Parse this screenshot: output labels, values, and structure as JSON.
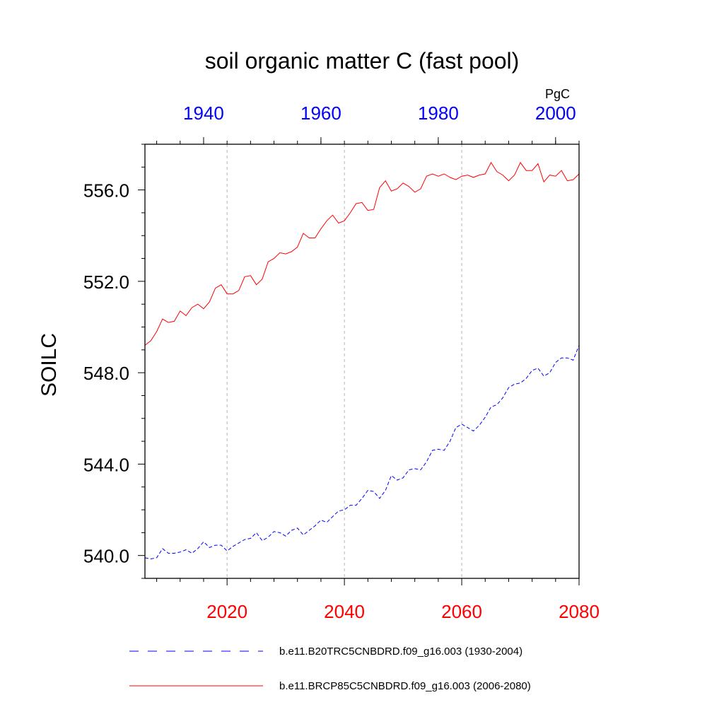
{
  "chart_data": {
    "type": "line",
    "title": "soil organic matter C (fast pool)",
    "units": "PgC",
    "ylabel": "SOILC",
    "ylim": [
      539.0,
      558.0
    ],
    "yticks": [
      540.0,
      544.0,
      548.0,
      552.0,
      556.0
    ],
    "ytick_labels": [
      "540.0",
      "544.0",
      "548.0",
      "552.0",
      "556.0"
    ],
    "grid": "vertical dashed lines at bottom-axis major ticks",
    "bottom_axis": {
      "range": [
        2006,
        2080
      ],
      "ticks": [
        2020,
        2040,
        2060,
        2080
      ],
      "tick_labels": [
        "2020",
        "2040",
        "2060",
        "2080"
      ],
      "color": "#ff0000"
    },
    "top_axis": {
      "range": [
        1930,
        2004
      ],
      "ticks": [
        1940,
        1960,
        1980,
        2000
      ],
      "tick_labels": [
        "1940",
        "1960",
        "1980",
        "2000"
      ],
      "color": "#0000ff"
    },
    "series": [
      {
        "name": "b.e11.B20TRC5CNBDRD.f09_g16.003 (1930-2004)",
        "color": "#0000ff",
        "dash": "dashed",
        "axis": "top",
        "x_start": 1930,
        "values": [
          539.9,
          539.85,
          539.9,
          540.3,
          540.1,
          540.1,
          540.15,
          540.25,
          540.1,
          540.3,
          540.6,
          540.35,
          540.45,
          540.45,
          540.2,
          540.4,
          540.55,
          540.7,
          540.75,
          541.0,
          540.65,
          540.8,
          541.05,
          541.0,
          540.85,
          541.1,
          541.2,
          540.9,
          541.1,
          541.3,
          541.55,
          541.45,
          541.7,
          541.95,
          542.0,
          542.2,
          542.2,
          542.5,
          542.85,
          542.8,
          542.5,
          542.85,
          543.5,
          543.3,
          543.4,
          543.75,
          543.8,
          543.75,
          544.1,
          544.6,
          544.65,
          544.6,
          545.0,
          545.6,
          545.75,
          545.6,
          545.45,
          545.7,
          546.05,
          546.5,
          546.6,
          546.9,
          547.35,
          547.5,
          547.55,
          547.75,
          548.1,
          548.2,
          547.85,
          548.0,
          548.45,
          548.65,
          548.65,
          548.55,
          549.2
        ]
      },
      {
        "name": "b.e11.BRCP85C5CNBDRD.f09_g16.003 (2006-2080)",
        "color": "#ff0000",
        "dash": "solid",
        "axis": "bottom",
        "x_start": 2006,
        "values": [
          549.2,
          549.4,
          549.8,
          550.35,
          550.2,
          550.25,
          550.7,
          550.5,
          550.85,
          551.0,
          550.8,
          551.1,
          551.7,
          551.85,
          551.45,
          551.45,
          551.6,
          552.2,
          552.25,
          551.85,
          552.1,
          552.85,
          553.0,
          553.25,
          553.2,
          553.3,
          553.5,
          554.1,
          553.9,
          553.9,
          554.3,
          554.65,
          554.9,
          554.55,
          554.65,
          555.0,
          555.4,
          555.45,
          555.1,
          555.15,
          556.1,
          556.4,
          555.95,
          556.05,
          556.3,
          556.15,
          555.9,
          556.05,
          556.6,
          556.7,
          556.6,
          556.7,
          556.55,
          556.45,
          556.6,
          556.65,
          556.55,
          556.65,
          556.7,
          557.2,
          556.8,
          556.65,
          556.4,
          556.65,
          557.2,
          556.85,
          556.85,
          557.15,
          556.35,
          556.65,
          556.6,
          556.85,
          556.4,
          556.45,
          556.7
        ]
      }
    ],
    "legend": {
      "placement": "bottom",
      "entries": [
        "b.e11.B20TRC5CNBDRD.f09_g16.003 (1930-2004)",
        "b.e11.BRCP85C5CNBDRD.f09_g16.003 (2006-2080)"
      ]
    }
  }
}
